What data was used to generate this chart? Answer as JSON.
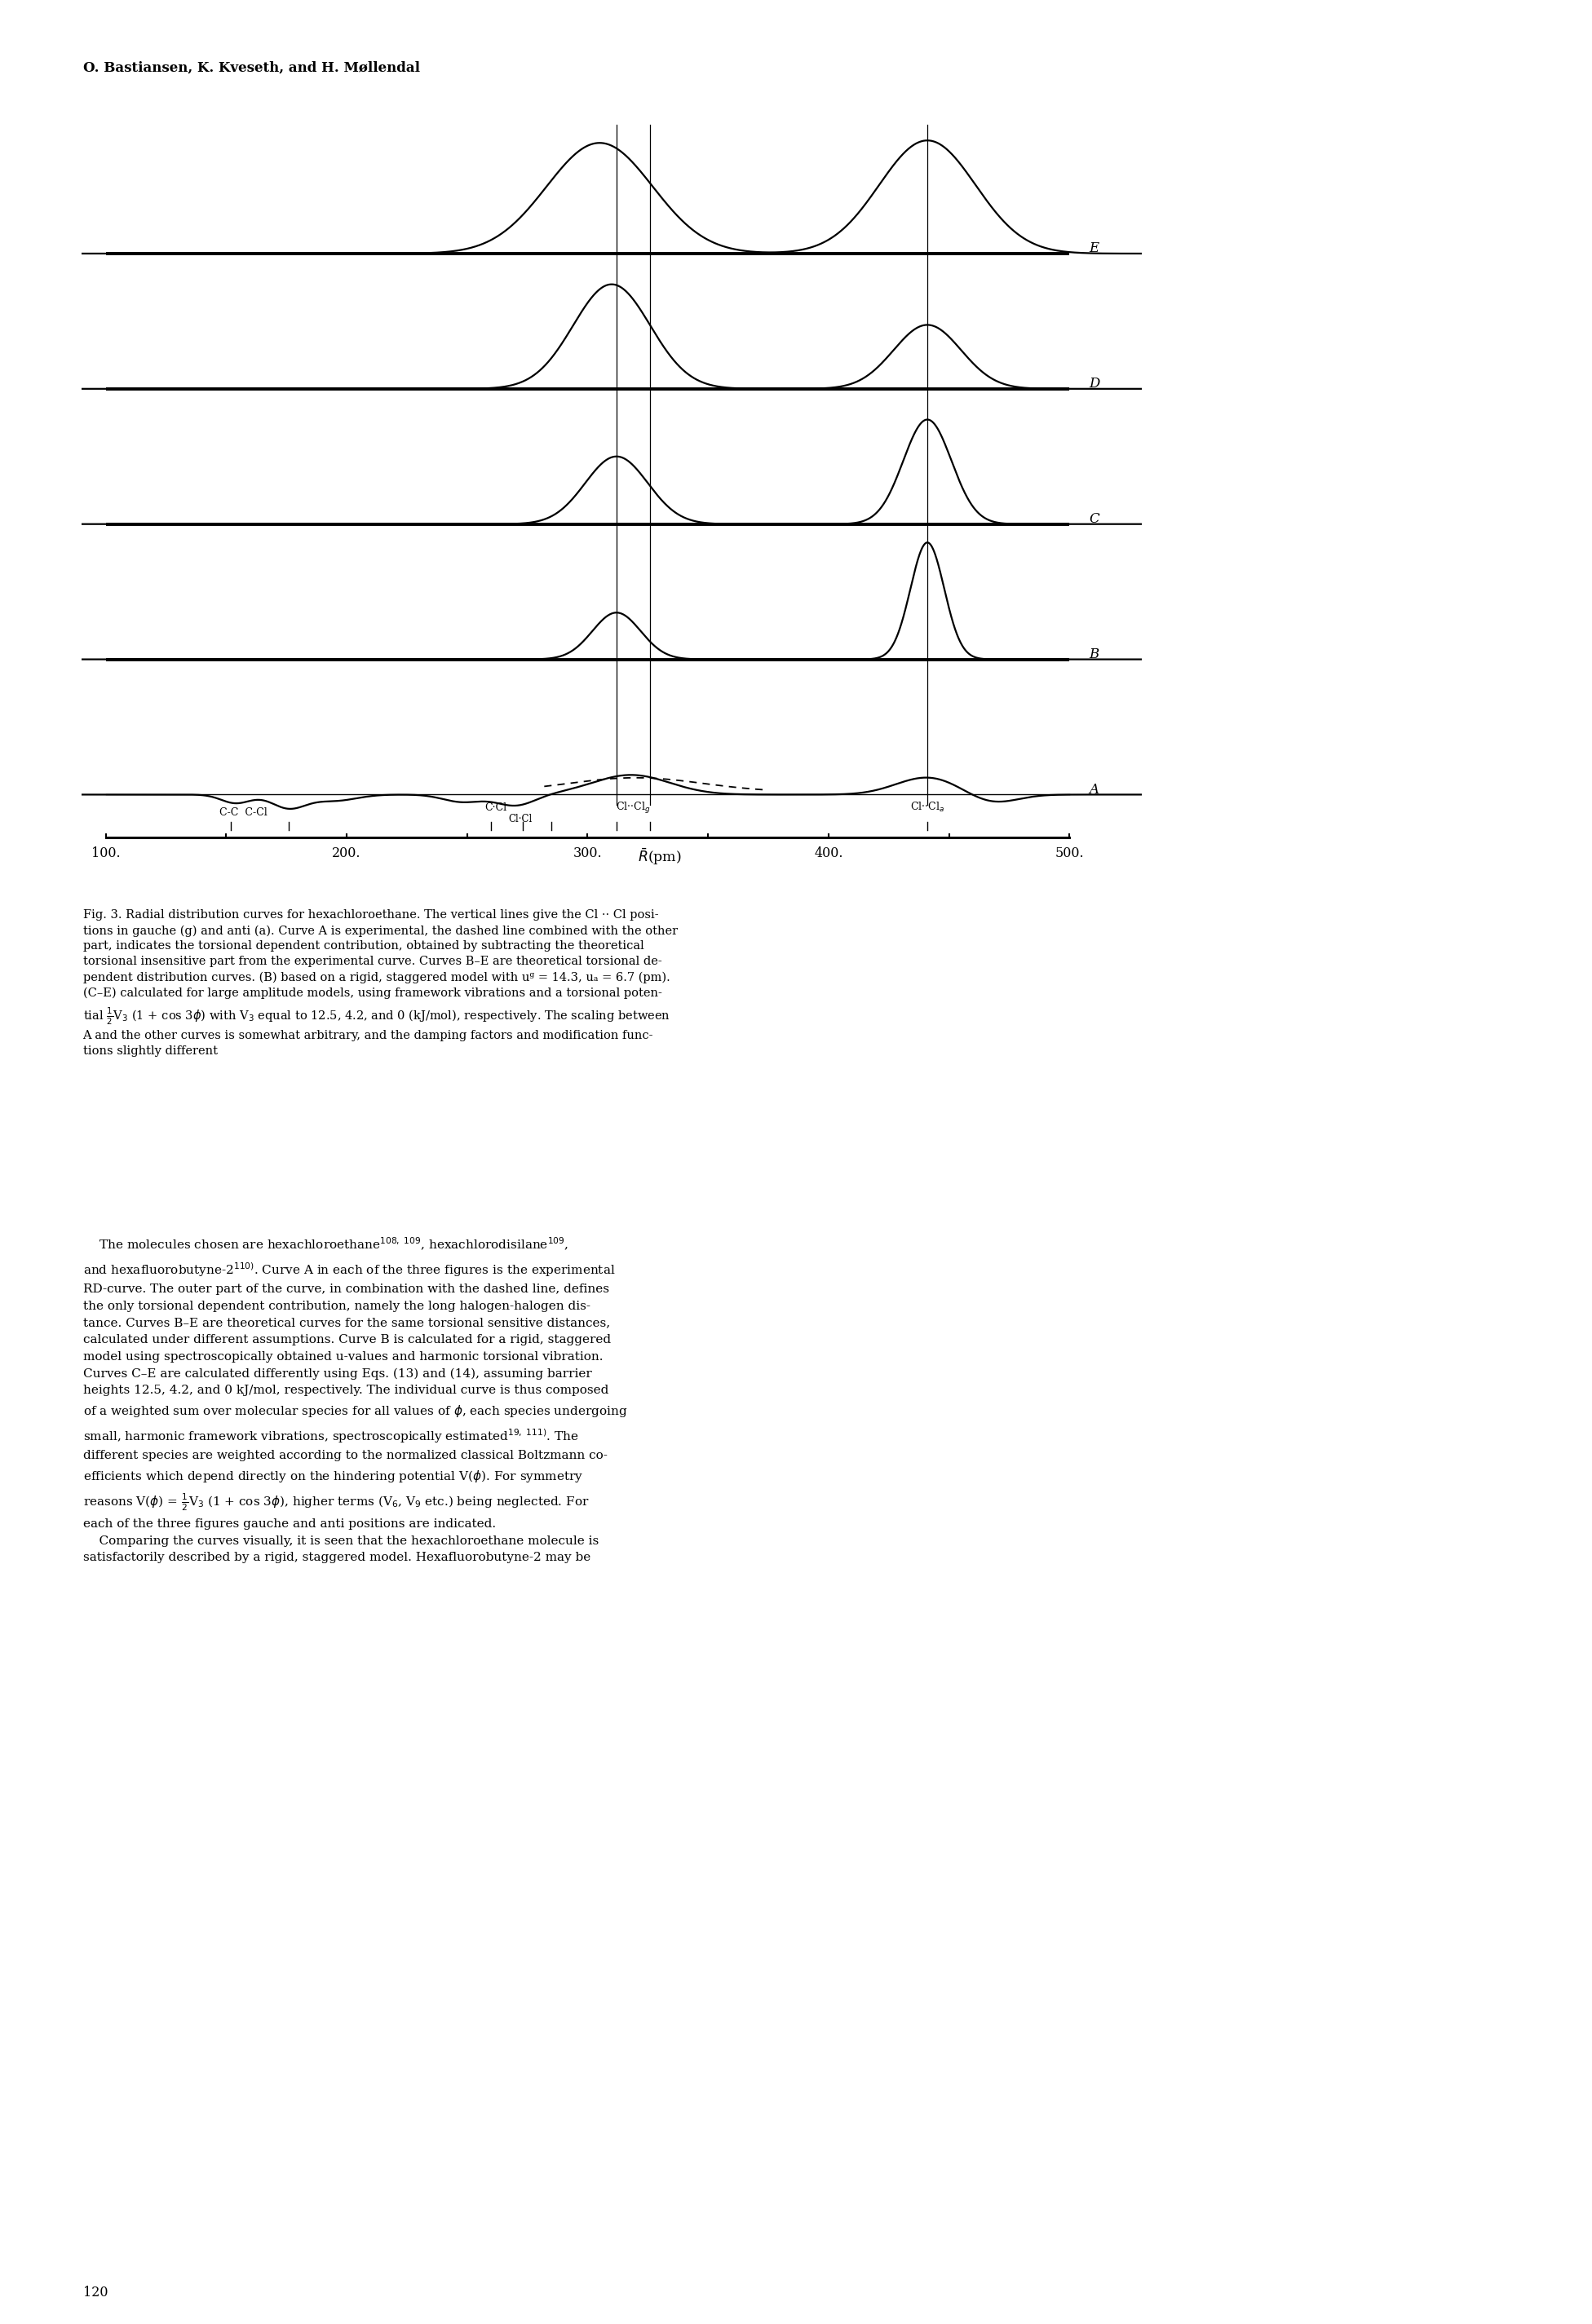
{
  "author_line": "O. Bastiansen, K. Kveseth, and H. Møllendal",
  "xmin": 90,
  "xmax": 530,
  "xtick_positions": [
    100,
    200,
    300,
    400,
    500
  ],
  "xtick_labels": [
    "100.",
    "200.",
    "300.",
    "400.",
    "500."
  ],
  "curve_labels": [
    "A",
    "B",
    "C",
    "D",
    "E"
  ],
  "offsets": [
    0.0,
    1.1,
    2.2,
    3.3,
    4.4
  ],
  "vline_gauche1": 312,
  "vline_gauche2": 326,
  "vline_anti": 441,
  "bg_color": "#ffffff",
  "lw_curve": 1.6,
  "lw_baseline": 2.8,
  "page_number": "120"
}
